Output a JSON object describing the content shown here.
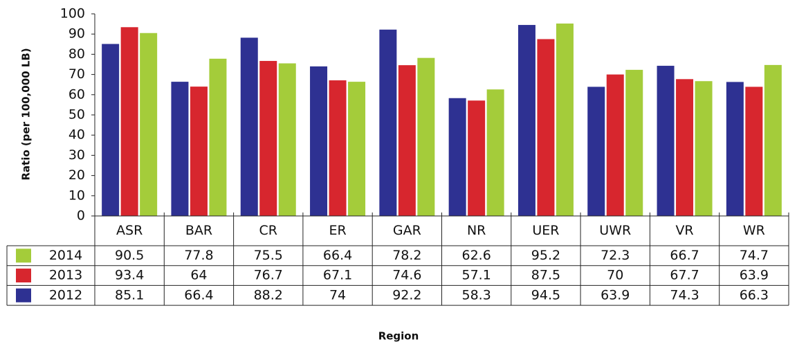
{
  "chart_data": {
    "type": "bar",
    "y_label": "Ratio (per 100,000 LB)",
    "x_label": "Region",
    "categories": [
      "ASR",
      "BAR",
      "CR",
      "ER",
      "GAR",
      "NR",
      "UER",
      "UWR",
      "VR",
      "WR"
    ],
    "series": [
      {
        "name": "2012",
        "color": "#2e3192",
        "values": [
          85.1,
          66.4,
          88.2,
          74,
          92.2,
          58.3,
          94.5,
          63.9,
          74.3,
          66.3
        ]
      },
      {
        "name": "2013",
        "color": "#d7262e",
        "values": [
          93.4,
          64,
          76.7,
          67.1,
          74.6,
          57.1,
          87.5,
          70,
          67.7,
          63.9
        ]
      },
      {
        "name": "2014",
        "color": "#a4cc3a",
        "values": [
          90.5,
          77.8,
          75.5,
          66.4,
          78.2,
          62.6,
          95.2,
          72.3,
          66.7,
          74.7
        ]
      }
    ],
    "ylim": [
      0,
      100
    ],
    "yticks": [
      0,
      10,
      20,
      30,
      40,
      50,
      60,
      70,
      80,
      90,
      100
    ]
  }
}
